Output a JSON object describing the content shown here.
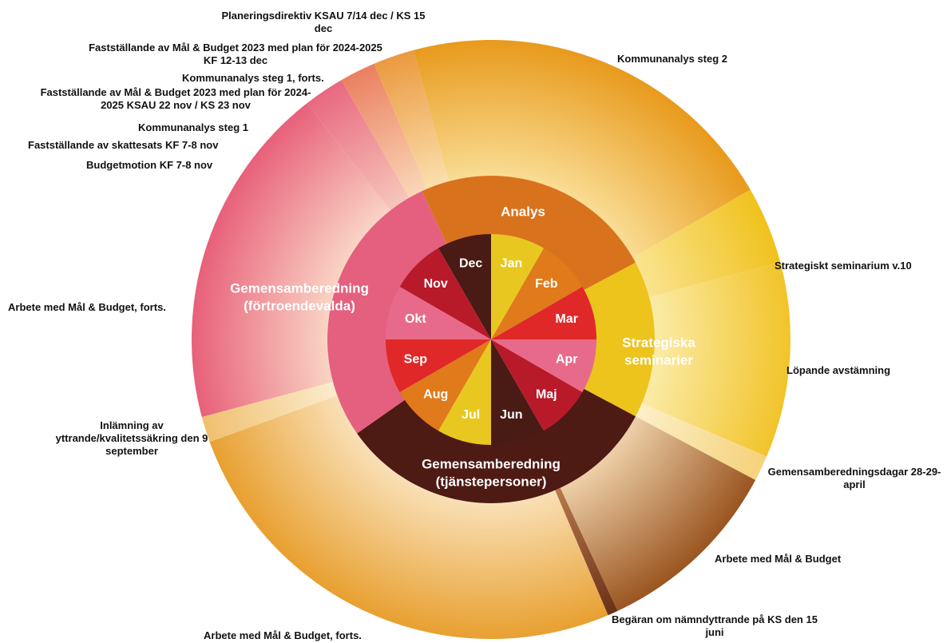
{
  "months": [
    "Jan",
    "Feb",
    "Mar",
    "Apr",
    "Maj",
    "Jun",
    "Jul",
    "Aug",
    "Sep",
    "Okt",
    "Nov",
    "Dec"
  ],
  "phases": [
    {
      "lines": [
        "Analys"
      ]
    },
    {
      "lines": [
        "Strategiska",
        "seminarier"
      ]
    },
    {
      "lines": [
        "Gemensamberedning",
        "(tjänstepersoner)"
      ]
    },
    {
      "lines": [
        "Gemensamberedning",
        "(förtroendevalda)"
      ]
    }
  ],
  "activities": [
    "Planeringsdirektiv KSAU 7/14 dec / KS 15 dec",
    "Fastställande av Mål & Budget 2023 med plan för 2024-2025 KF 12-13 dec",
    "Kommunanalys steg 1, forts.",
    "Fastställande av Mål & Budget 2023 med plan för 2024-2025 KSAU 22 nov / KS 23 nov",
    "Kommunanalys steg 1",
    "Fastställande av skattesats KF 7-8 nov",
    "Budgetmotion KF 7-8 nov",
    "Kommunanalys steg 2",
    "Strategiskt seminarium v.10",
    "Arbete med Mål & Budget, forts.",
    "Löpande avstämning",
    "Inlämning av yttrande/kvalitetssäkring den 9 september",
    "Gemensamberedningsdagar 28-29-april",
    "Arbete med Mål & Budget",
    "Begäran om nämndyttrande på KS den 15 juni",
    "Arbete med Mål & Budget, forts."
  ]
}
